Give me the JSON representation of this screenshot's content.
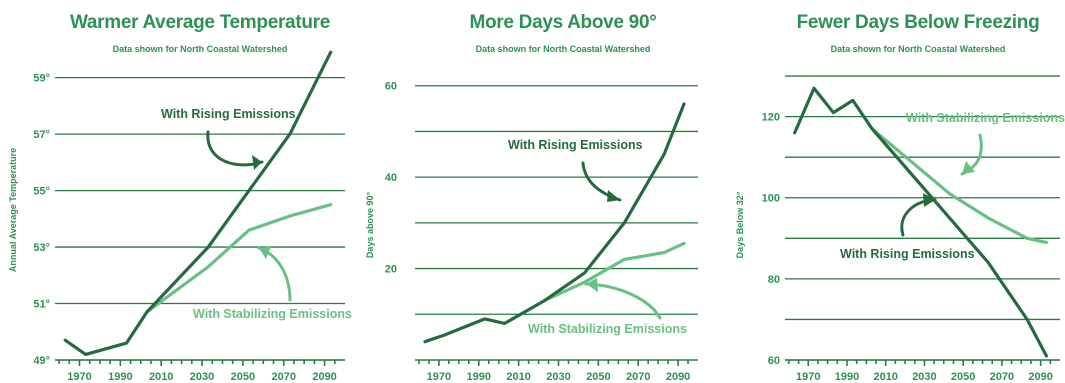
{
  "colors": {
    "rising": "#256b3f",
    "stabilizing": "#69c083",
    "text": "#2e9155",
    "grid": "#2b7a45"
  },
  "chart_data": [
    {
      "type": "line",
      "title": "Warmer Average Temperature",
      "subtitle": "Data shown for North Coastal Watershed",
      "ylabel": "Annual Average Temperature",
      "xlabel": "",
      "ylim": [
        49,
        59.2
      ],
      "xlim": [
        1958,
        2100
      ],
      "yticks": [
        49,
        51,
        53,
        55,
        57,
        59
      ],
      "ytick_labels": [
        "49°",
        "51°",
        "53°",
        "55°",
        "57°",
        "59°"
      ],
      "xticks": [
        1970,
        1990,
        2010,
        2030,
        2050,
        2070,
        2090
      ],
      "xtick_labels": [
        "1970",
        "1990",
        "2010",
        "2030",
        "2050",
        "2070",
        "2090"
      ],
      "grid": true,
      "series": [
        {
          "name": "With Rising Emissions",
          "role": "rising",
          "x": [
            1963,
            1973,
            1993,
            2003,
            2033,
            2053,
            2073,
            2093
          ],
          "y": [
            49.7,
            49.2,
            49.6,
            50.7,
            53.0,
            55.0,
            57.0,
            59.9
          ]
        },
        {
          "name": "With Stabilizing Emissions",
          "role": "stabilizing",
          "x": [
            2003,
            2033,
            2053,
            2073,
            2093
          ],
          "y": [
            50.7,
            52.3,
            53.6,
            54.1,
            54.5
          ]
        }
      ],
      "annotations": [
        {
          "text": "With Rising Emissions",
          "role": "rising",
          "anchor": "upper-middle"
        },
        {
          "text": "With Stabilizing Emissions",
          "role": "stabilizing",
          "anchor": "lower-right"
        }
      ]
    },
    {
      "type": "line",
      "title": "More Days Above 90°",
      "subtitle": "Data shown for North Coastal Watershed",
      "ylabel": "Days above 90°",
      "xlabel": "",
      "ylim": [
        0,
        63
      ],
      "xlim": [
        1958,
        2100
      ],
      "yticks": [
        20,
        40,
        60
      ],
      "ytick_labels": [
        "20",
        "40",
        "60"
      ],
      "xticks": [
        1970,
        1990,
        2010,
        2030,
        2050,
        2070,
        2090
      ],
      "xtick_labels": [
        "1970",
        "1990",
        "2010",
        "2030",
        "2050",
        "2070",
        "2090"
      ],
      "grid": true,
      "series": [
        {
          "name": "With Rising Emissions",
          "role": "rising",
          "x": [
            1963,
            1973,
            1993,
            2003,
            2023,
            2043,
            2063,
            2083,
            2093
          ],
          "y": [
            4,
            5.5,
            9,
            8,
            13,
            19,
            30,
            45,
            56
          ]
        },
        {
          "name": "With Stabilizing Emissions",
          "role": "stabilizing",
          "x": [
            2023,
            2043,
            2063,
            2083,
            2093
          ],
          "y": [
            13,
            17,
            22,
            23.5,
            25.5
          ]
        }
      ],
      "annotations": [
        {
          "text": "With Rising Emissions",
          "role": "rising",
          "anchor": "upper-middle"
        },
        {
          "text": "With Stabilizing Emissions",
          "role": "stabilizing",
          "anchor": "lower-right"
        }
      ]
    },
    {
      "type": "line",
      "title": "Fewer Days Below Freezing",
      "subtitle": "Data shown for North Coastal Watershed",
      "ylabel": "Days Below 32°",
      "xlabel": "",
      "ylim": [
        60,
        131
      ],
      "xlim": [
        1958,
        2100
      ],
      "yticks": [
        60,
        80,
        100,
        120
      ],
      "ytick_labels": [
        "60",
        "80",
        "100",
        "120"
      ],
      "xticks": [
        1970,
        1990,
        2010,
        2030,
        2050,
        2070,
        2090
      ],
      "xtick_labels": [
        "1970",
        "1990",
        "2010",
        "2030",
        "2050",
        "2070",
        "2090"
      ],
      "grid": true,
      "series": [
        {
          "name": "With Rising Emissions",
          "role": "rising",
          "x": [
            1963,
            1973,
            1983,
            1993,
            2003,
            2023,
            2043,
            2063,
            2083,
            2093
          ],
          "y": [
            116,
            127,
            121,
            124,
            117,
            106,
            95,
            84,
            70,
            61
          ]
        },
        {
          "name": "With Stabilizing Emissions",
          "role": "stabilizing",
          "x": [
            2003,
            2043,
            2063,
            2083,
            2093
          ],
          "y": [
            117,
            101,
            95,
            90,
            89
          ]
        }
      ],
      "annotations": [
        {
          "text": "With Stabilizing Emissions",
          "role": "stabilizing",
          "anchor": "upper-right"
        },
        {
          "text": "With Rising Emissions",
          "role": "rising",
          "anchor": "lower-middle"
        }
      ]
    }
  ]
}
